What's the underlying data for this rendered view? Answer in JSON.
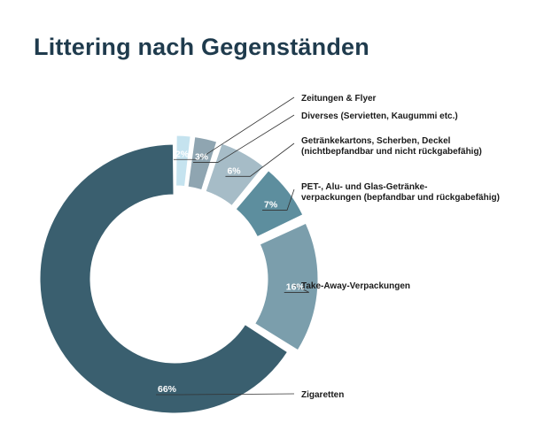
{
  "title": "Littering nach Gegenständen",
  "chart_data": {
    "type": "pie",
    "variant": "exploded-donut",
    "unit": "%",
    "slices": [
      {
        "name": "Zigaretten",
        "value": 66,
        "label": "66%",
        "color": "#3a5f6f",
        "label_lines": [
          "Zigaretten"
        ]
      },
      {
        "name": "Take-Away-Verpackungen",
        "value": 16,
        "label": "16%",
        "color": "#7b9eac",
        "label_lines": [
          "Take-Away-Verpackungen"
        ]
      },
      {
        "name": "PET-, Alu- und Glas-Getränkeverpackungen (bepfandbar und rückgabefähig)",
        "value": 7,
        "label": "7%",
        "color": "#5d8e9e",
        "label_lines": [
          "PET-, Alu- und Glas-Getränke-",
          "verpackungen (bepfandbar und rückgabefähig)"
        ]
      },
      {
        "name": "Getränkekartons, Scherben, Deckel (nichtbepfandbar und nicht rückgabefähig)",
        "value": 6,
        "label": "6%",
        "color": "#a6bcc7",
        "label_lines": [
          "Getränkekartons, Scherben, Deckel",
          "(nichtbepfandbar und nicht rückgabefähig)"
        ]
      },
      {
        "name": "Diverses (Servietten, Kaugummi etc.)",
        "value": 3,
        "label": "3%",
        "color": "#8fa5b1",
        "label_lines": [
          "Diverses (Servietten, Kaugummi etc.)"
        ]
      },
      {
        "name": "Zeitungen & Flyer",
        "value": 2,
        "label": "2%",
        "color": "#c5e3ef",
        "label_lines": [
          "Zeitungen & Flyer"
        ]
      }
    ]
  }
}
